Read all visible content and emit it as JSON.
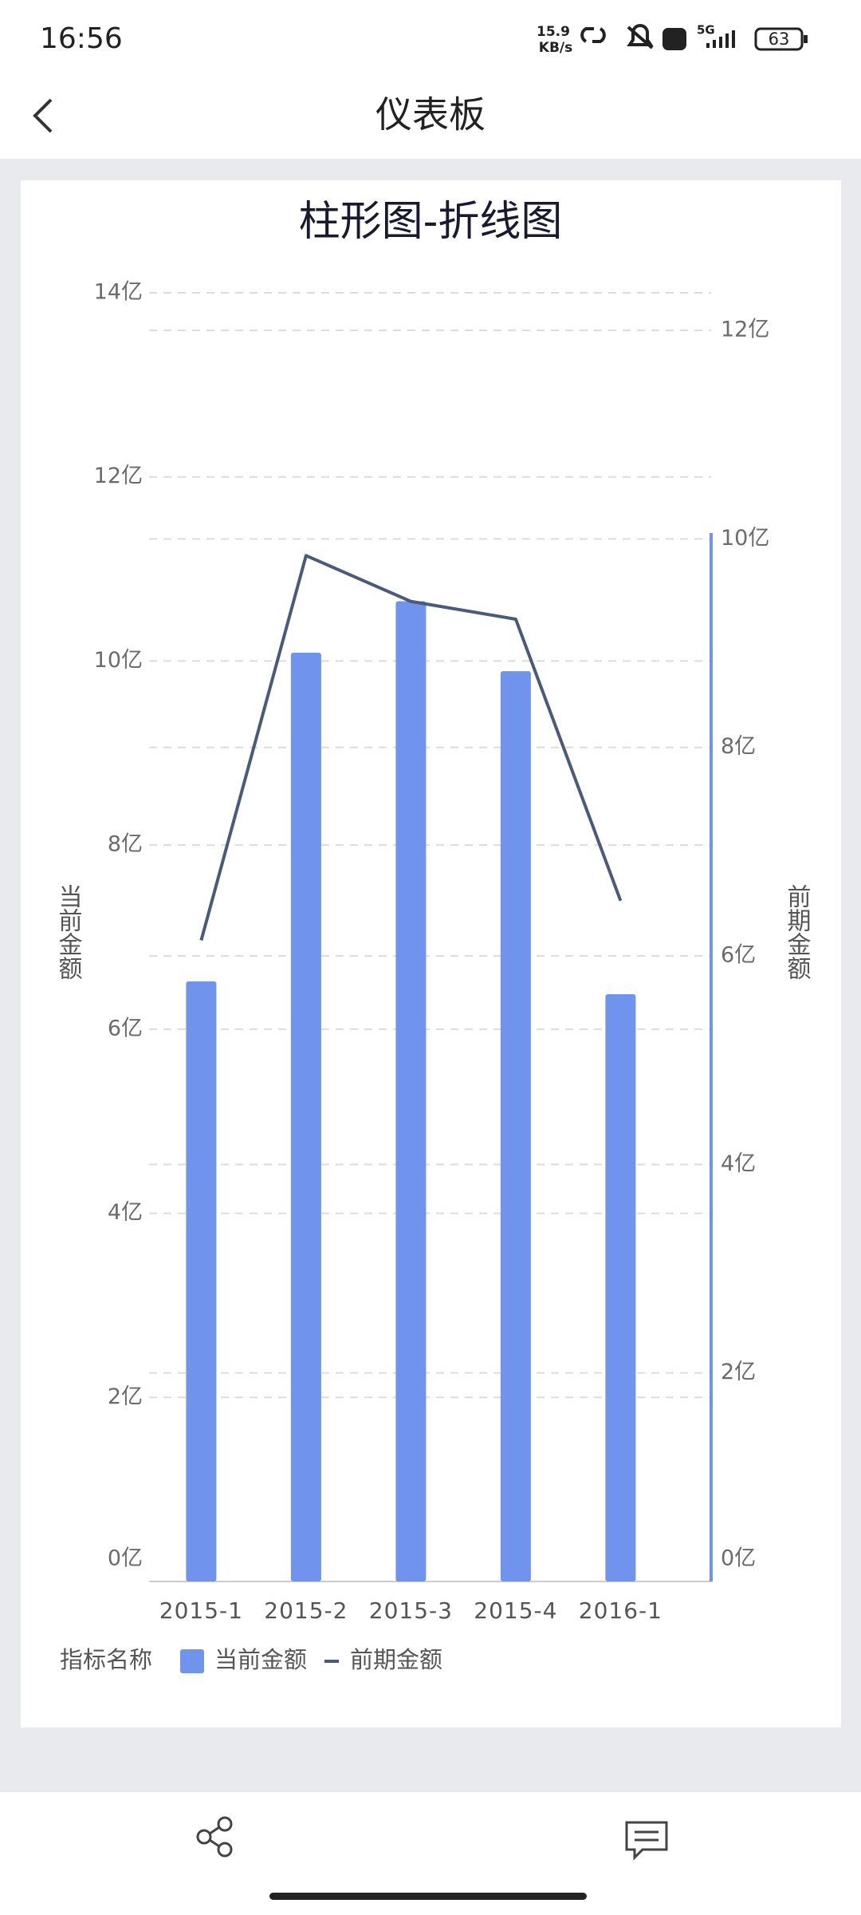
{
  "status_bar": {
    "time": "16:56",
    "net_speed_value": "15.9",
    "net_speed_unit": "KB/s",
    "battery": "63"
  },
  "header": {
    "title": "仪表板"
  },
  "chart_data": {
    "type": "bar_line",
    "title": "柱形图-折线图",
    "categories": [
      "2015-1",
      "2015-2",
      "2015-3",
      "2015-4",
      "2016-1"
    ],
    "series": [
      {
        "name": "当前金额",
        "type": "bar",
        "color": "#7094ee",
        "values": [
          6.52,
          10.09,
          10.65,
          9.89,
          6.38
        ]
      },
      {
        "name": "前期金额",
        "type": "line",
        "axis": "y2",
        "color": "#4a5a7a",
        "values": [
          6.15,
          9.84,
          9.4,
          9.23,
          6.53
        ]
      }
    ],
    "ylabel": "当前金额",
    "y2label": "前期金额",
    "legend_title": "指标名称",
    "legend": "bottom-left",
    "grid": true,
    "ylim": [
      0,
      14
    ],
    "yticks": [
      {
        "value": 0,
        "label": "0亿"
      },
      {
        "value": 2,
        "label": "2亿"
      },
      {
        "value": 4,
        "label": "4亿"
      },
      {
        "value": 6,
        "label": "6亿"
      },
      {
        "value": 8,
        "label": "8亿"
      },
      {
        "value": 10,
        "label": "10亿"
      },
      {
        "value": 12,
        "label": "12亿"
      },
      {
        "value": 14,
        "label": "14亿"
      }
    ],
    "y2lim": [
      0,
      12.36
    ],
    "y2ticks": [
      {
        "value": 0,
        "label": "0亿"
      },
      {
        "value": 2,
        "label": "2亿"
      },
      {
        "value": 4,
        "label": "4亿"
      },
      {
        "value": 6,
        "label": "6亿"
      },
      {
        "value": 8,
        "label": "8亿"
      },
      {
        "value": 10,
        "label": "10亿"
      },
      {
        "value": 12,
        "label": "12亿"
      }
    ]
  }
}
